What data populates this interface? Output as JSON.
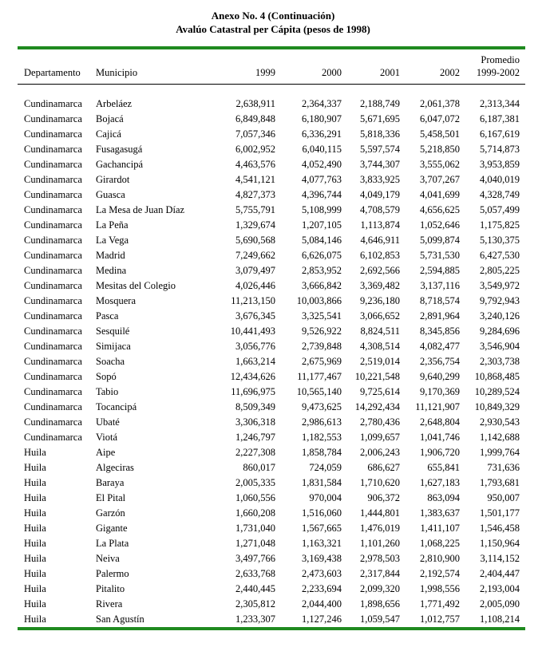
{
  "page": {
    "title_line1": "Anexo No. 4 (Continuación)",
    "title_line2": "Avalúo Catastral per Cápita (pesos de 1998)"
  },
  "colors": {
    "rule_green": "#1f8a1f",
    "text": "#000000",
    "background": "#ffffff"
  },
  "table": {
    "header": {
      "departamento": "Departamento",
      "municipio": "Municipio",
      "y1999": "1999",
      "y2000": "2000",
      "y2001": "2001",
      "y2002": "2002",
      "promedio_line1": "Promedio",
      "promedio_line2": "1999-2002"
    },
    "column_keys": [
      "departamento",
      "municipio",
      "y1999",
      "y2000",
      "y2001",
      "y2002",
      "promedio"
    ],
    "rows": [
      [
        "Cundinamarca",
        "Arbeláez",
        "2,638,911",
        "2,364,337",
        "2,188,749",
        "2,061,378",
        "2,313,344"
      ],
      [
        "Cundinamarca",
        "Bojacá",
        "6,849,848",
        "6,180,907",
        "5,671,695",
        "6,047,072",
        "6,187,381"
      ],
      [
        "Cundinamarca",
        "Cajicá",
        "7,057,346",
        "6,336,291",
        "5,818,336",
        "5,458,501",
        "6,167,619"
      ],
      [
        "Cundinamarca",
        "Fusagasugá",
        "6,002,952",
        "6,040,115",
        "5,597,574",
        "5,218,850",
        "5,714,873"
      ],
      [
        "Cundinamarca",
        "Gachancipá",
        "4,463,576",
        "4,052,490",
        "3,744,307",
        "3,555,062",
        "3,953,859"
      ],
      [
        "Cundinamarca",
        "Girardot",
        "4,541,121",
        "4,077,763",
        "3,833,925",
        "3,707,267",
        "4,040,019"
      ],
      [
        "Cundinamarca",
        "Guasca",
        "4,827,373",
        "4,396,744",
        "4,049,179",
        "4,041,699",
        "4,328,749"
      ],
      [
        "Cundinamarca",
        "La Mesa de Juan Díaz",
        "5,755,791",
        "5,108,999",
        "4,708,579",
        "4,656,625",
        "5,057,499"
      ],
      [
        "Cundinamarca",
        "La Peña",
        "1,329,674",
        "1,207,105",
        "1,113,874",
        "1,052,646",
        "1,175,825"
      ],
      [
        "Cundinamarca",
        "La Vega",
        "5,690,568",
        "5,084,146",
        "4,646,911",
        "5,099,874",
        "5,130,375"
      ],
      [
        "Cundinamarca",
        "Madrid",
        "7,249,662",
        "6,626,075",
        "6,102,853",
        "5,731,530",
        "6,427,530"
      ],
      [
        "Cundinamarca",
        "Medina",
        "3,079,497",
        "2,853,952",
        "2,692,566",
        "2,594,885",
        "2,805,225"
      ],
      [
        "Cundinamarca",
        "Mesitas del Colegio",
        "4,026,446",
        "3,666,842",
        "3,369,482",
        "3,137,116",
        "3,549,972"
      ],
      [
        "Cundinamarca",
        "Mosquera",
        "11,213,150",
        "10,003,866",
        "9,236,180",
        "8,718,574",
        "9,792,943"
      ],
      [
        "Cundinamarca",
        "Pasca",
        "3,676,345",
        "3,325,541",
        "3,066,652",
        "2,891,964",
        "3,240,126"
      ],
      [
        "Cundinamarca",
        "Sesquilé",
        "10,441,493",
        "9,526,922",
        "8,824,511",
        "8,345,856",
        "9,284,696"
      ],
      [
        "Cundinamarca",
        "Simijaca",
        "3,056,776",
        "2,739,848",
        "4,308,514",
        "4,082,477",
        "3,546,904"
      ],
      [
        "Cundinamarca",
        "Soacha",
        "1,663,214",
        "2,675,969",
        "2,519,014",
        "2,356,754",
        "2,303,738"
      ],
      [
        "Cundinamarca",
        "Sopó",
        "12,434,626",
        "11,177,467",
        "10,221,548",
        "9,640,299",
        "10,868,485"
      ],
      [
        "Cundinamarca",
        "Tabio",
        "11,696,975",
        "10,565,140",
        "9,725,614",
        "9,170,369",
        "10,289,524"
      ],
      [
        "Cundinamarca",
        "Tocancipá",
        "8,509,349",
        "9,473,625",
        "14,292,434",
        "11,121,907",
        "10,849,329"
      ],
      [
        "Cundinamarca",
        "Ubaté",
        "3,306,318",
        "2,986,613",
        "2,780,436",
        "2,648,804",
        "2,930,543"
      ],
      [
        "Cundinamarca",
        "Viotá",
        "1,246,797",
        "1,182,553",
        "1,099,657",
        "1,041,746",
        "1,142,688"
      ],
      [
        "Huila",
        "Aipe",
        "2,227,308",
        "1,858,784",
        "2,006,243",
        "1,906,720",
        "1,999,764"
      ],
      [
        "Huila",
        "Algeciras",
        "860,017",
        "724,059",
        "686,627",
        "655,841",
        "731,636"
      ],
      [
        "Huila",
        "Baraya",
        "2,005,335",
        "1,831,584",
        "1,710,620",
        "1,627,183",
        "1,793,681"
      ],
      [
        "Huila",
        "El Pital",
        "1,060,556",
        "970,004",
        "906,372",
        "863,094",
        "950,007"
      ],
      [
        "Huila",
        "Garzón",
        "1,660,208",
        "1,516,060",
        "1,444,801",
        "1,383,637",
        "1,501,177"
      ],
      [
        "Huila",
        "Gigante",
        "1,731,040",
        "1,567,665",
        "1,476,019",
        "1,411,107",
        "1,546,458"
      ],
      [
        "Huila",
        "La Plata",
        "1,271,048",
        "1,163,321",
        "1,101,260",
        "1,068,225",
        "1,150,964"
      ],
      [
        "Huila",
        "Neiva",
        "3,497,766",
        "3,169,438",
        "2,978,503",
        "2,810,900",
        "3,114,152"
      ],
      [
        "Huila",
        "Palermo",
        "2,633,768",
        "2,473,603",
        "2,317,844",
        "2,192,574",
        "2,404,447"
      ],
      [
        "Huila",
        "Pitalito",
        "2,440,445",
        "2,233,694",
        "2,099,320",
        "1,998,556",
        "2,193,004"
      ],
      [
        "Huila",
        "Rivera",
        "2,305,812",
        "2,044,400",
        "1,898,656",
        "1,771,492",
        "2,005,090"
      ],
      [
        "Huila",
        "San Agustín",
        "1,233,307",
        "1,127,246",
        "1,059,547",
        "1,012,757",
        "1,108,214"
      ]
    ]
  }
}
